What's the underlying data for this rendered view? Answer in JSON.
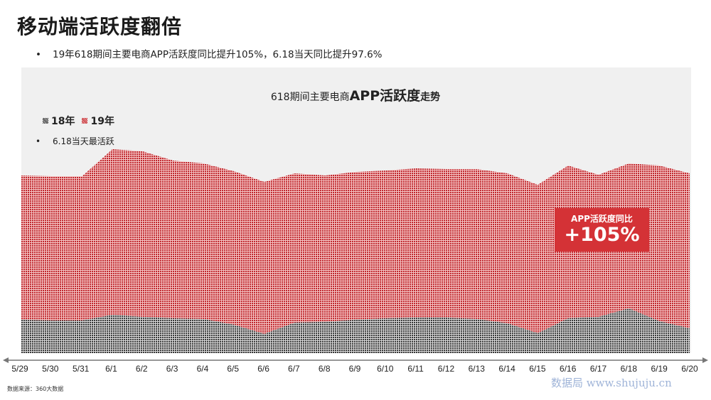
{
  "page": {
    "title": "移动端活跃度翻倍",
    "subtitle_bullet": "•",
    "subtitle": "19年618期间主要电商APP活跃度同比提升105%，6.18当天同比提升97.6%",
    "source": "数据来源：360大数据",
    "watermark": "数据局 www.shujuju.cn"
  },
  "note": {
    "bullet": "•",
    "text": "6.18当天最活跃"
  },
  "callout": {
    "label": "APP活跃度同比",
    "value": "+105%"
  },
  "colors": {
    "series18": "#444444",
    "series19": "#c0282e",
    "callout": "#d43236",
    "panel": "#f0f0f0"
  },
  "chart_data": {
    "type": "area",
    "stacked": true,
    "title_prefix": "618期间主要电商",
    "title_main": "APP活跃度",
    "title_suffix": "走势",
    "categories": [
      "5/29",
      "5/30",
      "5/31",
      "6/1",
      "6/2",
      "6/3",
      "6/4",
      "6/5",
      "6/6",
      "6/7",
      "6/8",
      "6/9",
      "6/10",
      "6/11",
      "6/12",
      "6/13",
      "6/14",
      "6/15",
      "6/16",
      "6/17",
      "6/18",
      "6/19",
      "6/20"
    ],
    "series": [
      {
        "name": "18年",
        "values": [
          47,
          46,
          46,
          54,
          51,
          49,
          48,
          40,
          27,
          43,
          44,
          47,
          49,
          50,
          50,
          48,
          42,
          28,
          49,
          51,
          63,
          45,
          35
        ]
      },
      {
        "name": "19年",
        "values": [
          203,
          203,
          203,
          233,
          233,
          222,
          219,
          216,
          214,
          210,
          206,
          208,
          208,
          210,
          209,
          211,
          211,
          209,
          215,
          200,
          204,
          219,
          218
        ]
      }
    ],
    "ylim": [
      0,
      300
    ],
    "xlabel": "",
    "ylabel": "",
    "legend_position": "top-left"
  }
}
